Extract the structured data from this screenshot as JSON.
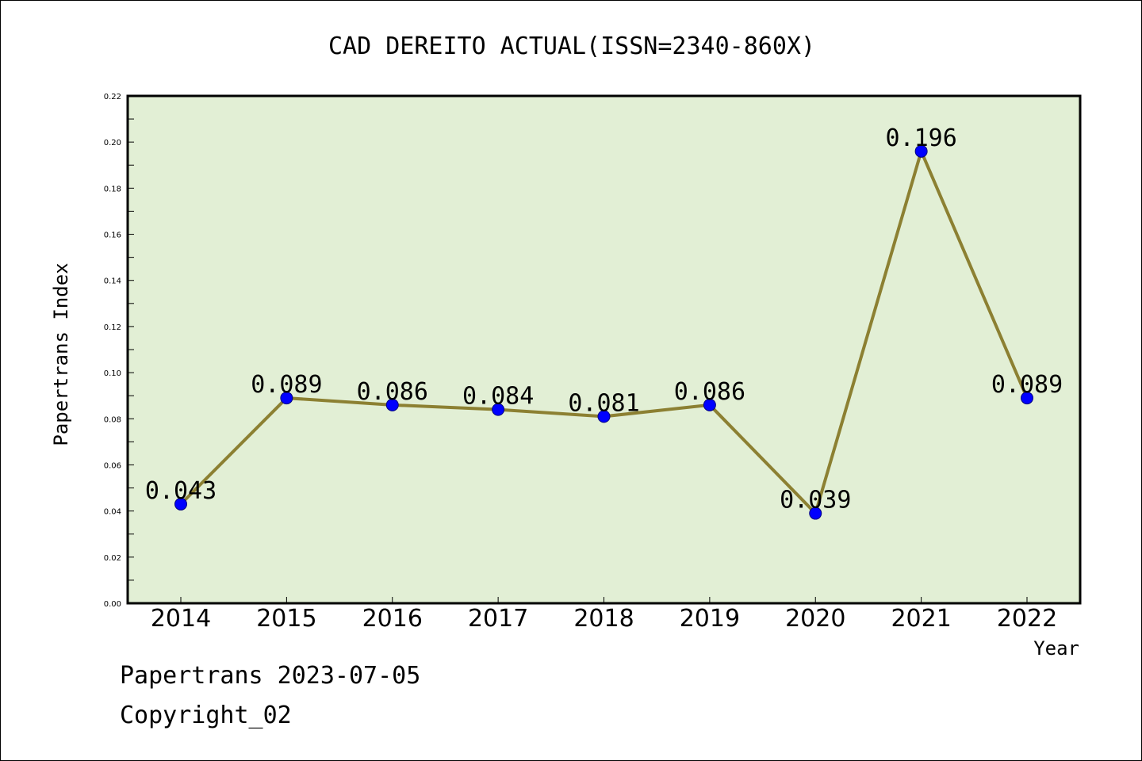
{
  "chart_data": {
    "type": "line",
    "title": "CAD DEREITO ACTUAL(ISSN=2340-860X)",
    "xlabel": "Year",
    "ylabel": "Papertrans Index",
    "categories": [
      "2014",
      "2015",
      "2016",
      "2017",
      "2018",
      "2019",
      "2020",
      "2021",
      "2022"
    ],
    "series": [
      {
        "values": [
          0.043,
          0.089,
          0.086,
          0.084,
          0.081,
          0.086,
          0.039,
          0.196,
          0.089
        ],
        "data_labels": [
          "0.043",
          "0.089",
          "0.086",
          "0.084",
          "0.081",
          "0.086",
          "0.039",
          "0.196",
          "0.089"
        ]
      }
    ],
    "ylim": [
      0,
      0.22
    ],
    "yticks": [
      "0.00",
      "0.02",
      "0.04",
      "0.06",
      "0.08",
      "0.10",
      "0.12",
      "0.14",
      "0.16",
      "0.18",
      "0.20",
      "0.22"
    ],
    "grid": false,
    "legend": "none",
    "colors": {
      "plot_background": "#e2efd5",
      "line": "#8c8032",
      "marker": "#0000ff"
    }
  },
  "footer": {
    "line1": "Papertrans 2023-07-05",
    "line2": "Copyright_02"
  }
}
